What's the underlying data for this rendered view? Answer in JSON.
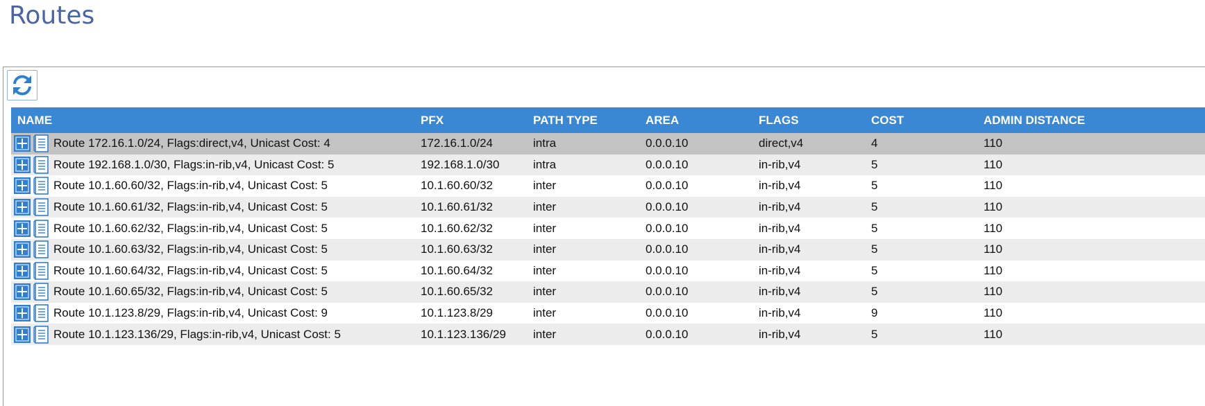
{
  "page": {
    "title": "Routes"
  },
  "toolbar": {
    "refresh_icon": "refresh-icon"
  },
  "colors": {
    "header_bg": "#3a87d4",
    "title": "#4a64a8",
    "icon_blue": "#2f7fd0"
  },
  "table": {
    "columns": [
      "NAME",
      "PFX",
      "PATH TYPE",
      "AREA",
      "FLAGS",
      "COST",
      "ADMIN DISTANCE"
    ],
    "rows": [
      {
        "name": "Route 172.16.1.0/24, Flags:direct,v4, Unicast Cost: 4",
        "pfx": "172.16.1.0/24",
        "path_type": "intra",
        "area": "0.0.0.10",
        "flags": "direct,v4",
        "cost": "4",
        "admin_distance": "110"
      },
      {
        "name": "Route 192.168.1.0/30, Flags:in-rib,v4, Unicast Cost: 5",
        "pfx": "192.168.1.0/30",
        "path_type": "intra",
        "area": "0.0.0.10",
        "flags": "in-rib,v4",
        "cost": "5",
        "admin_distance": "110"
      },
      {
        "name": "Route 10.1.60.60/32, Flags:in-rib,v4, Unicast Cost: 5",
        "pfx": "10.1.60.60/32",
        "path_type": "inter",
        "area": "0.0.0.10",
        "flags": "in-rib,v4",
        "cost": "5",
        "admin_distance": "110"
      },
      {
        "name": "Route 10.1.60.61/32, Flags:in-rib,v4, Unicast Cost: 5",
        "pfx": "10.1.60.61/32",
        "path_type": "inter",
        "area": "0.0.0.10",
        "flags": "in-rib,v4",
        "cost": "5",
        "admin_distance": "110"
      },
      {
        "name": "Route 10.1.60.62/32, Flags:in-rib,v4, Unicast Cost: 5",
        "pfx": "10.1.60.62/32",
        "path_type": "inter",
        "area": "0.0.0.10",
        "flags": "in-rib,v4",
        "cost": "5",
        "admin_distance": "110"
      },
      {
        "name": "Route 10.1.60.63/32, Flags:in-rib,v4, Unicast Cost: 5",
        "pfx": "10.1.60.63/32",
        "path_type": "inter",
        "area": "0.0.0.10",
        "flags": "in-rib,v4",
        "cost": "5",
        "admin_distance": "110"
      },
      {
        "name": "Route 10.1.60.64/32, Flags:in-rib,v4, Unicast Cost: 5",
        "pfx": "10.1.60.64/32",
        "path_type": "inter",
        "area": "0.0.0.10",
        "flags": "in-rib,v4",
        "cost": "5",
        "admin_distance": "110"
      },
      {
        "name": "Route 10.1.60.65/32, Flags:in-rib,v4, Unicast Cost: 5",
        "pfx": "10.1.60.65/32",
        "path_type": "inter",
        "area": "0.0.0.10",
        "flags": "in-rib,v4",
        "cost": "5",
        "admin_distance": "110"
      },
      {
        "name": "Route 10.1.123.8/29, Flags:in-rib,v4, Unicast Cost: 9",
        "pfx": "10.1.123.8/29",
        "path_type": "inter",
        "area": "0.0.0.10",
        "flags": "in-rib,v4",
        "cost": "9",
        "admin_distance": "110"
      },
      {
        "name": "Route 10.1.123.136/29, Flags:in-rib,v4, Unicast Cost: 5",
        "pfx": "10.1.123.136/29",
        "path_type": "inter",
        "area": "0.0.0.10",
        "flags": "in-rib,v4",
        "cost": "5",
        "admin_distance": "110"
      }
    ]
  }
}
